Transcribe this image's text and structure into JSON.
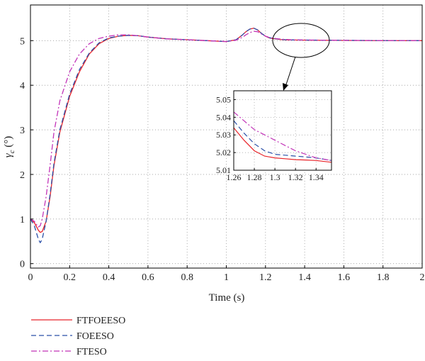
{
  "chart_data": {
    "type": "line",
    "xlabel": "Time (s)",
    "ylabel": "γc (°)",
    "ylabel_symbol": "γ",
    "ylabel_sub": "c",
    "ylabel_unit": " (°)",
    "xlim": [
      0,
      2
    ],
    "ylim": [
      -0.1,
      5.8
    ],
    "x_ticks": [
      0,
      0.2,
      0.4,
      0.6,
      0.8,
      1,
      1.2,
      1.4,
      1.6,
      1.8,
      2
    ],
    "x_tick_labels": [
      "0",
      "0.2",
      "0.4",
      "0.6",
      "0.8",
      "1",
      "1.2",
      "1.4",
      "1.6",
      "1.8",
      "2"
    ],
    "y_ticks": [
      0,
      1,
      2,
      3,
      4,
      5
    ],
    "y_tick_labels": [
      "0",
      "1",
      "2",
      "3",
      "4",
      "5"
    ],
    "grid": true,
    "legend_position": "bottom-left",
    "series": [
      {
        "name": "FTFOEESO",
        "color": "#e8242a",
        "dash": "solid",
        "x": [
          0,
          0.02,
          0.04,
          0.05,
          0.06,
          0.08,
          0.1,
          0.12,
          0.15,
          0.2,
          0.25,
          0.3,
          0.35,
          0.4,
          0.45,
          0.5,
          0.55,
          0.6,
          0.7,
          0.8,
          0.9,
          1.0,
          1.05,
          1.08,
          1.1,
          1.12,
          1.14,
          1.16,
          1.18,
          1.2,
          1.22,
          1.24,
          1.26,
          1.28,
          1.3,
          1.32,
          1.34,
          1.4,
          1.6,
          1.8,
          2.0
        ],
        "y": [
          1.0,
          0.92,
          0.75,
          0.7,
          0.72,
          0.95,
          1.5,
          2.2,
          2.95,
          3.75,
          4.3,
          4.7,
          4.93,
          5.05,
          5.1,
          5.12,
          5.11,
          5.08,
          5.04,
          5.02,
          5.0,
          4.98,
          5.02,
          5.12,
          5.2,
          5.26,
          5.28,
          5.24,
          5.16,
          5.1,
          5.06,
          5.045,
          5.035,
          5.022,
          5.017,
          5.016,
          5.015,
          5.012,
          5.005,
          5.0,
          5.0
        ]
      },
      {
        "name": "FOEESO",
        "color": "#2a4fa8",
        "dash": "dashed",
        "x": [
          0,
          0.02,
          0.04,
          0.05,
          0.06,
          0.08,
          0.1,
          0.12,
          0.15,
          0.2,
          0.25,
          0.3,
          0.35,
          0.4,
          0.45,
          0.5,
          0.55,
          0.6,
          0.7,
          0.8,
          0.9,
          1.0,
          1.05,
          1.08,
          1.1,
          1.12,
          1.14,
          1.16,
          1.18,
          1.2,
          1.22,
          1.24,
          1.26,
          1.28,
          1.3,
          1.32,
          1.34,
          1.4,
          1.6,
          1.8,
          2.0
        ],
        "y": [
          1.0,
          0.85,
          0.55,
          0.47,
          0.55,
          0.95,
          1.55,
          2.25,
          3.0,
          3.8,
          4.35,
          4.72,
          4.95,
          5.06,
          5.1,
          5.12,
          5.11,
          5.08,
          5.04,
          5.02,
          5.0,
          4.98,
          5.02,
          5.12,
          5.2,
          5.26,
          5.28,
          5.24,
          5.16,
          5.1,
          5.065,
          5.05,
          5.039,
          5.026,
          5.02,
          5.018,
          5.016,
          5.013,
          5.006,
          5.001,
          5.0
        ]
      },
      {
        "name": "FTESO",
        "color": "#c233b8",
        "dash": "dashdot",
        "x": [
          0,
          0.02,
          0.04,
          0.05,
          0.06,
          0.08,
          0.1,
          0.12,
          0.15,
          0.2,
          0.25,
          0.3,
          0.35,
          0.4,
          0.45,
          0.5,
          0.55,
          0.6,
          0.7,
          0.8,
          0.9,
          1.0,
          1.05,
          1.08,
          1.1,
          1.12,
          1.14,
          1.16,
          1.18,
          1.2,
          1.22,
          1.24,
          1.26,
          1.28,
          1.3,
          1.32,
          1.34,
          1.4,
          1.6,
          1.8,
          2.0
        ],
        "y": [
          1.0,
          0.95,
          0.82,
          0.85,
          1.0,
          1.5,
          2.2,
          2.95,
          3.65,
          4.3,
          4.7,
          4.93,
          5.05,
          5.1,
          5.13,
          5.13,
          5.11,
          5.08,
          5.04,
          5.02,
          5.0,
          4.98,
          5.01,
          5.07,
          5.13,
          5.18,
          5.21,
          5.2,
          5.15,
          5.1,
          5.07,
          5.055,
          5.043,
          5.033,
          5.027,
          5.022,
          5.018,
          5.014,
          5.006,
          5.001,
          5.0
        ]
      }
    ],
    "inset": {
      "xlim": [
        1.26,
        1.355
      ],
      "ylim": [
        5.01,
        5.055
      ],
      "x_ticks": [
        1.26,
        1.28,
        1.3,
        1.32,
        1.34
      ],
      "x_tick_labels": [
        "1.26",
        "1.28",
        "1.3",
        "1.32",
        "1.34"
      ],
      "y_ticks": [
        5.01,
        5.02,
        5.03,
        5.04,
        5.05
      ],
      "y_tick_labels": [
        "5.01",
        "5.02",
        "5.03",
        "5.04",
        "5.05"
      ],
      "series": [
        {
          "name": "FTFOEESO",
          "x": [
            1.26,
            1.27,
            1.28,
            1.29,
            1.3,
            1.31,
            1.32,
            1.33,
            1.34,
            1.355
          ],
          "y": [
            5.034,
            5.027,
            5.021,
            5.018,
            5.017,
            5.0165,
            5.016,
            5.0158,
            5.0155,
            5.0145
          ]
        },
        {
          "name": "FOEESO",
          "x": [
            1.26,
            1.27,
            1.28,
            1.29,
            1.3,
            1.31,
            1.32,
            1.33,
            1.34,
            1.355
          ],
          "y": [
            5.038,
            5.031,
            5.025,
            5.021,
            5.019,
            5.0185,
            5.018,
            5.0175,
            5.017,
            5.0155
          ]
        },
        {
          "name": "FTESO",
          "x": [
            1.26,
            1.27,
            1.28,
            1.29,
            1.3,
            1.31,
            1.32,
            1.33,
            1.34,
            1.355
          ],
          "y": [
            5.043,
            5.038,
            5.033,
            5.03,
            5.027,
            5.024,
            5.021,
            5.019,
            5.017,
            5.0155
          ]
        }
      ]
    }
  }
}
